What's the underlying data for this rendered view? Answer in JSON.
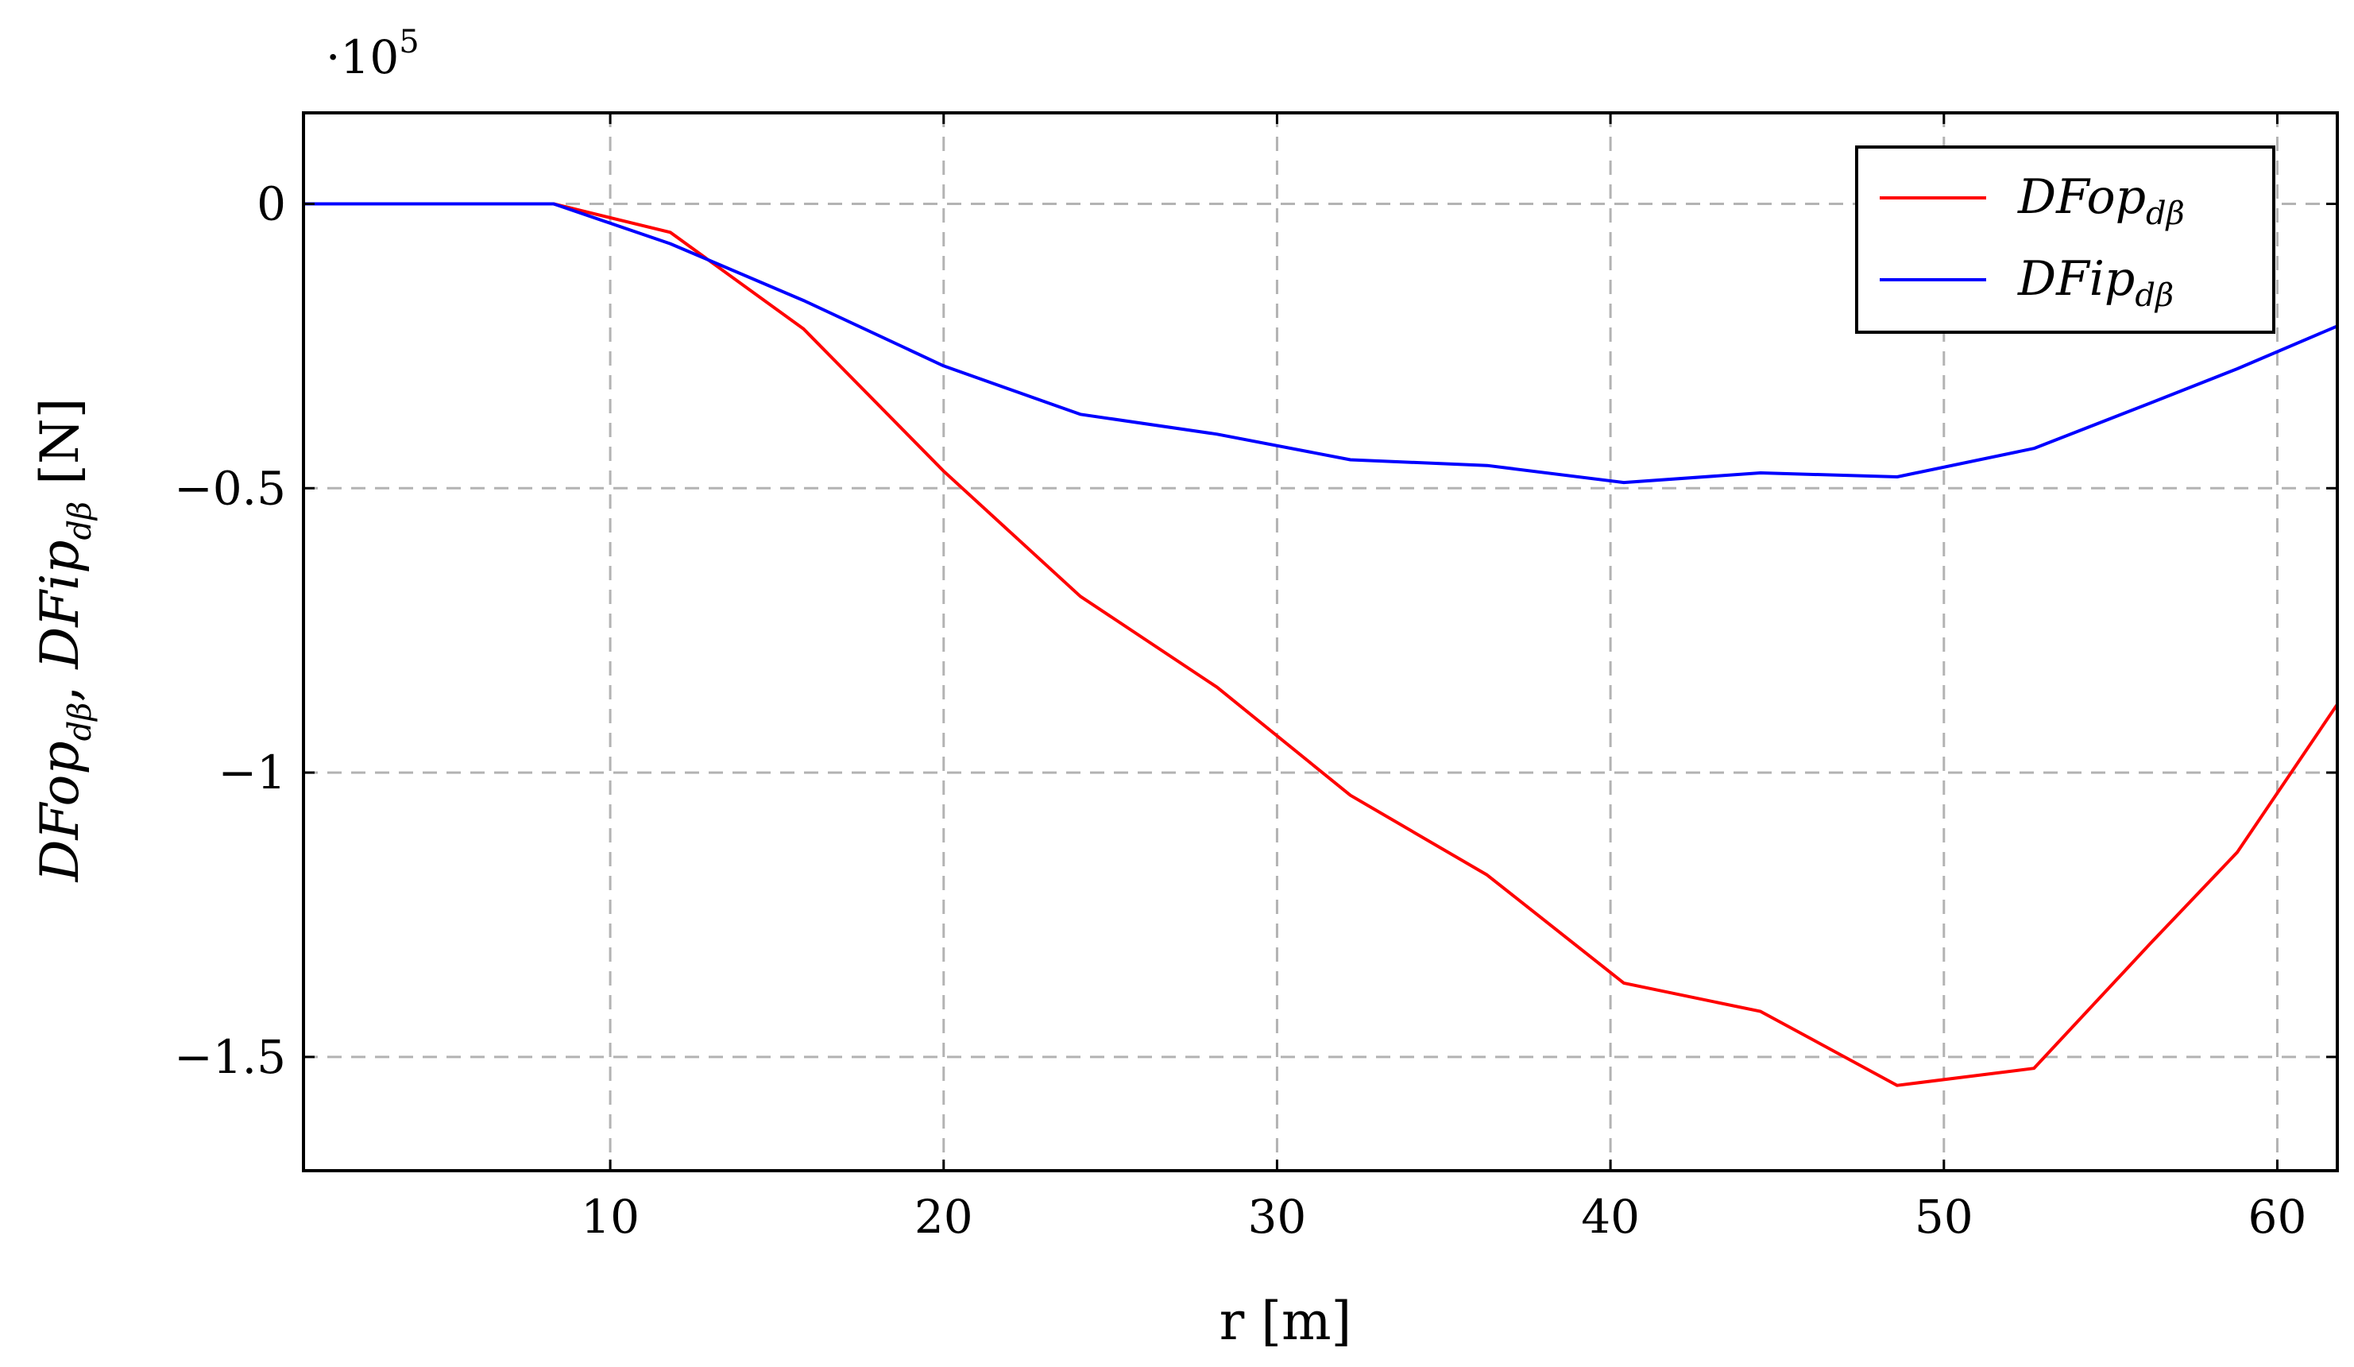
{
  "chart_data": {
    "type": "line",
    "title": "",
    "xlabel": "r [m]",
    "ylabel_parts": {
      "first_main": "DFop",
      "first_sub": "dβ",
      "separator": ", ",
      "second_main": "DFip",
      "second_sub": "dβ",
      "unit": " [N]"
    },
    "y_multiplier": {
      "prefix": "·10",
      "exponent": "5"
    },
    "xlim": [
      0.8,
      61.8
    ],
    "ylim": [
      -1.7,
      0.16
    ],
    "x_ticks": [
      10,
      20,
      30,
      40,
      50,
      60
    ],
    "x_tick_labels": [
      "10",
      "20",
      "30",
      "40",
      "50",
      "60"
    ],
    "y_ticks": [
      0,
      -0.5,
      -1,
      -1.5
    ],
    "y_tick_labels": [
      "0",
      "−0.5",
      "−1",
      "−1.5"
    ],
    "grid": true,
    "legend_position": "top-right",
    "series": [
      {
        "name": "DFop",
        "name_sub": "dβ",
        "color": "#ff0000",
        "x": [
          0.8,
          8.3,
          11.8,
          15.8,
          20.0,
          24.1,
          28.2,
          32.2,
          36.3,
          40.4,
          44.5,
          48.6,
          52.7,
          56.2,
          58.8,
          61.8
        ],
        "y": [
          0,
          0,
          -0.05,
          -0.22,
          -0.47,
          -0.69,
          -0.85,
          -1.04,
          -1.18,
          -1.37,
          -1.42,
          -1.55,
          -1.52,
          -1.3,
          -1.14,
          -0.88
        ]
      },
      {
        "name": "DFip",
        "name_sub": "dβ",
        "color": "#0000ff",
        "x": [
          0.8,
          8.3,
          11.8,
          15.8,
          20.0,
          24.1,
          28.2,
          32.2,
          36.3,
          40.4,
          44.5,
          48.6,
          52.7,
          56.2,
          58.8,
          61.8
        ],
        "y": [
          0,
          0,
          -0.07,
          -0.17,
          -0.285,
          -0.37,
          -0.405,
          -0.45,
          -0.46,
          -0.49,
          -0.473,
          -0.48,
          -0.43,
          -0.35,
          -0.29,
          -0.215
        ]
      }
    ]
  }
}
